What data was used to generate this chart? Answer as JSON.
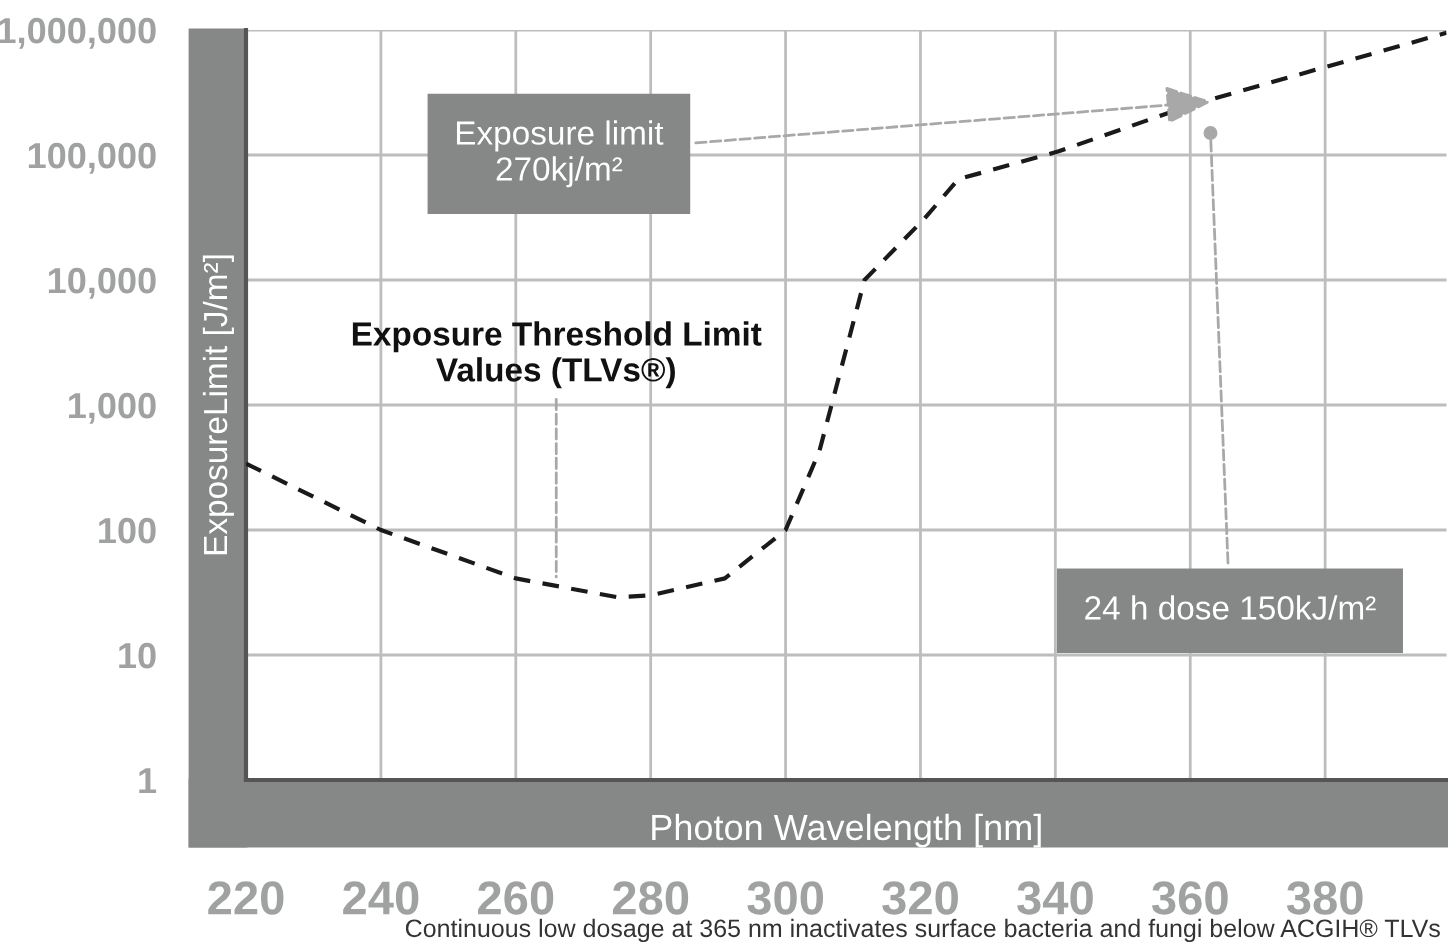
{
  "chart_data": {
    "type": "line",
    "xlabel": "Photon Wavelength [nm]",
    "ylabel": "ExposureLimit [J/m²]",
    "x": [
      220,
      240,
      260,
      275,
      280,
      291,
      300,
      305,
      311.7,
      320.6,
      325.6,
      340.5,
      360,
      398
    ],
    "series": [
      {
        "color": "#1a1a1a",
        "values": [
          340,
          100,
          41,
          29,
          30,
          41,
          100,
          425,
          10000,
          31000,
          64000,
          107000,
          250000,
          950000
        ]
      }
    ],
    "xlim": [
      220,
      398
    ],
    "xticks": [
      220,
      240,
      260,
      280,
      300,
      320,
      340,
      360,
      380
    ],
    "ylim": [
      1,
      1000000
    ],
    "log": true,
    "yticks": [
      {
        "value": 1,
        "label": "1"
      },
      {
        "value": 10,
        "label": "10"
      },
      {
        "value": 100,
        "label": "100"
      },
      {
        "value": 1000,
        "label": "1,000"
      },
      {
        "value": 10000,
        "label": "10,000"
      },
      {
        "value": 100000,
        "label": "100,000"
      },
      {
        "value": 1000000,
        "label": "1,000,000"
      }
    ],
    "grid": true,
    "marker": "none",
    "line_style": "dashed",
    "annotations": [
      {
        "text": "Exposure limit\n270kj/m²",
        "x": 364,
        "y": 270000
      },
      {
        "text": "24 h dose 150kJ/m²",
        "x": 363,
        "y": 150000
      },
      {
        "text": "Exposure Threshold Limit\nValues (TLVs®)",
        "x": 266,
        "y": 38
      },
      "Continuous low dosage at 365 nm inactivates surface bacteria and fungi below ACGIH® TLVs"
    ]
  }
}
